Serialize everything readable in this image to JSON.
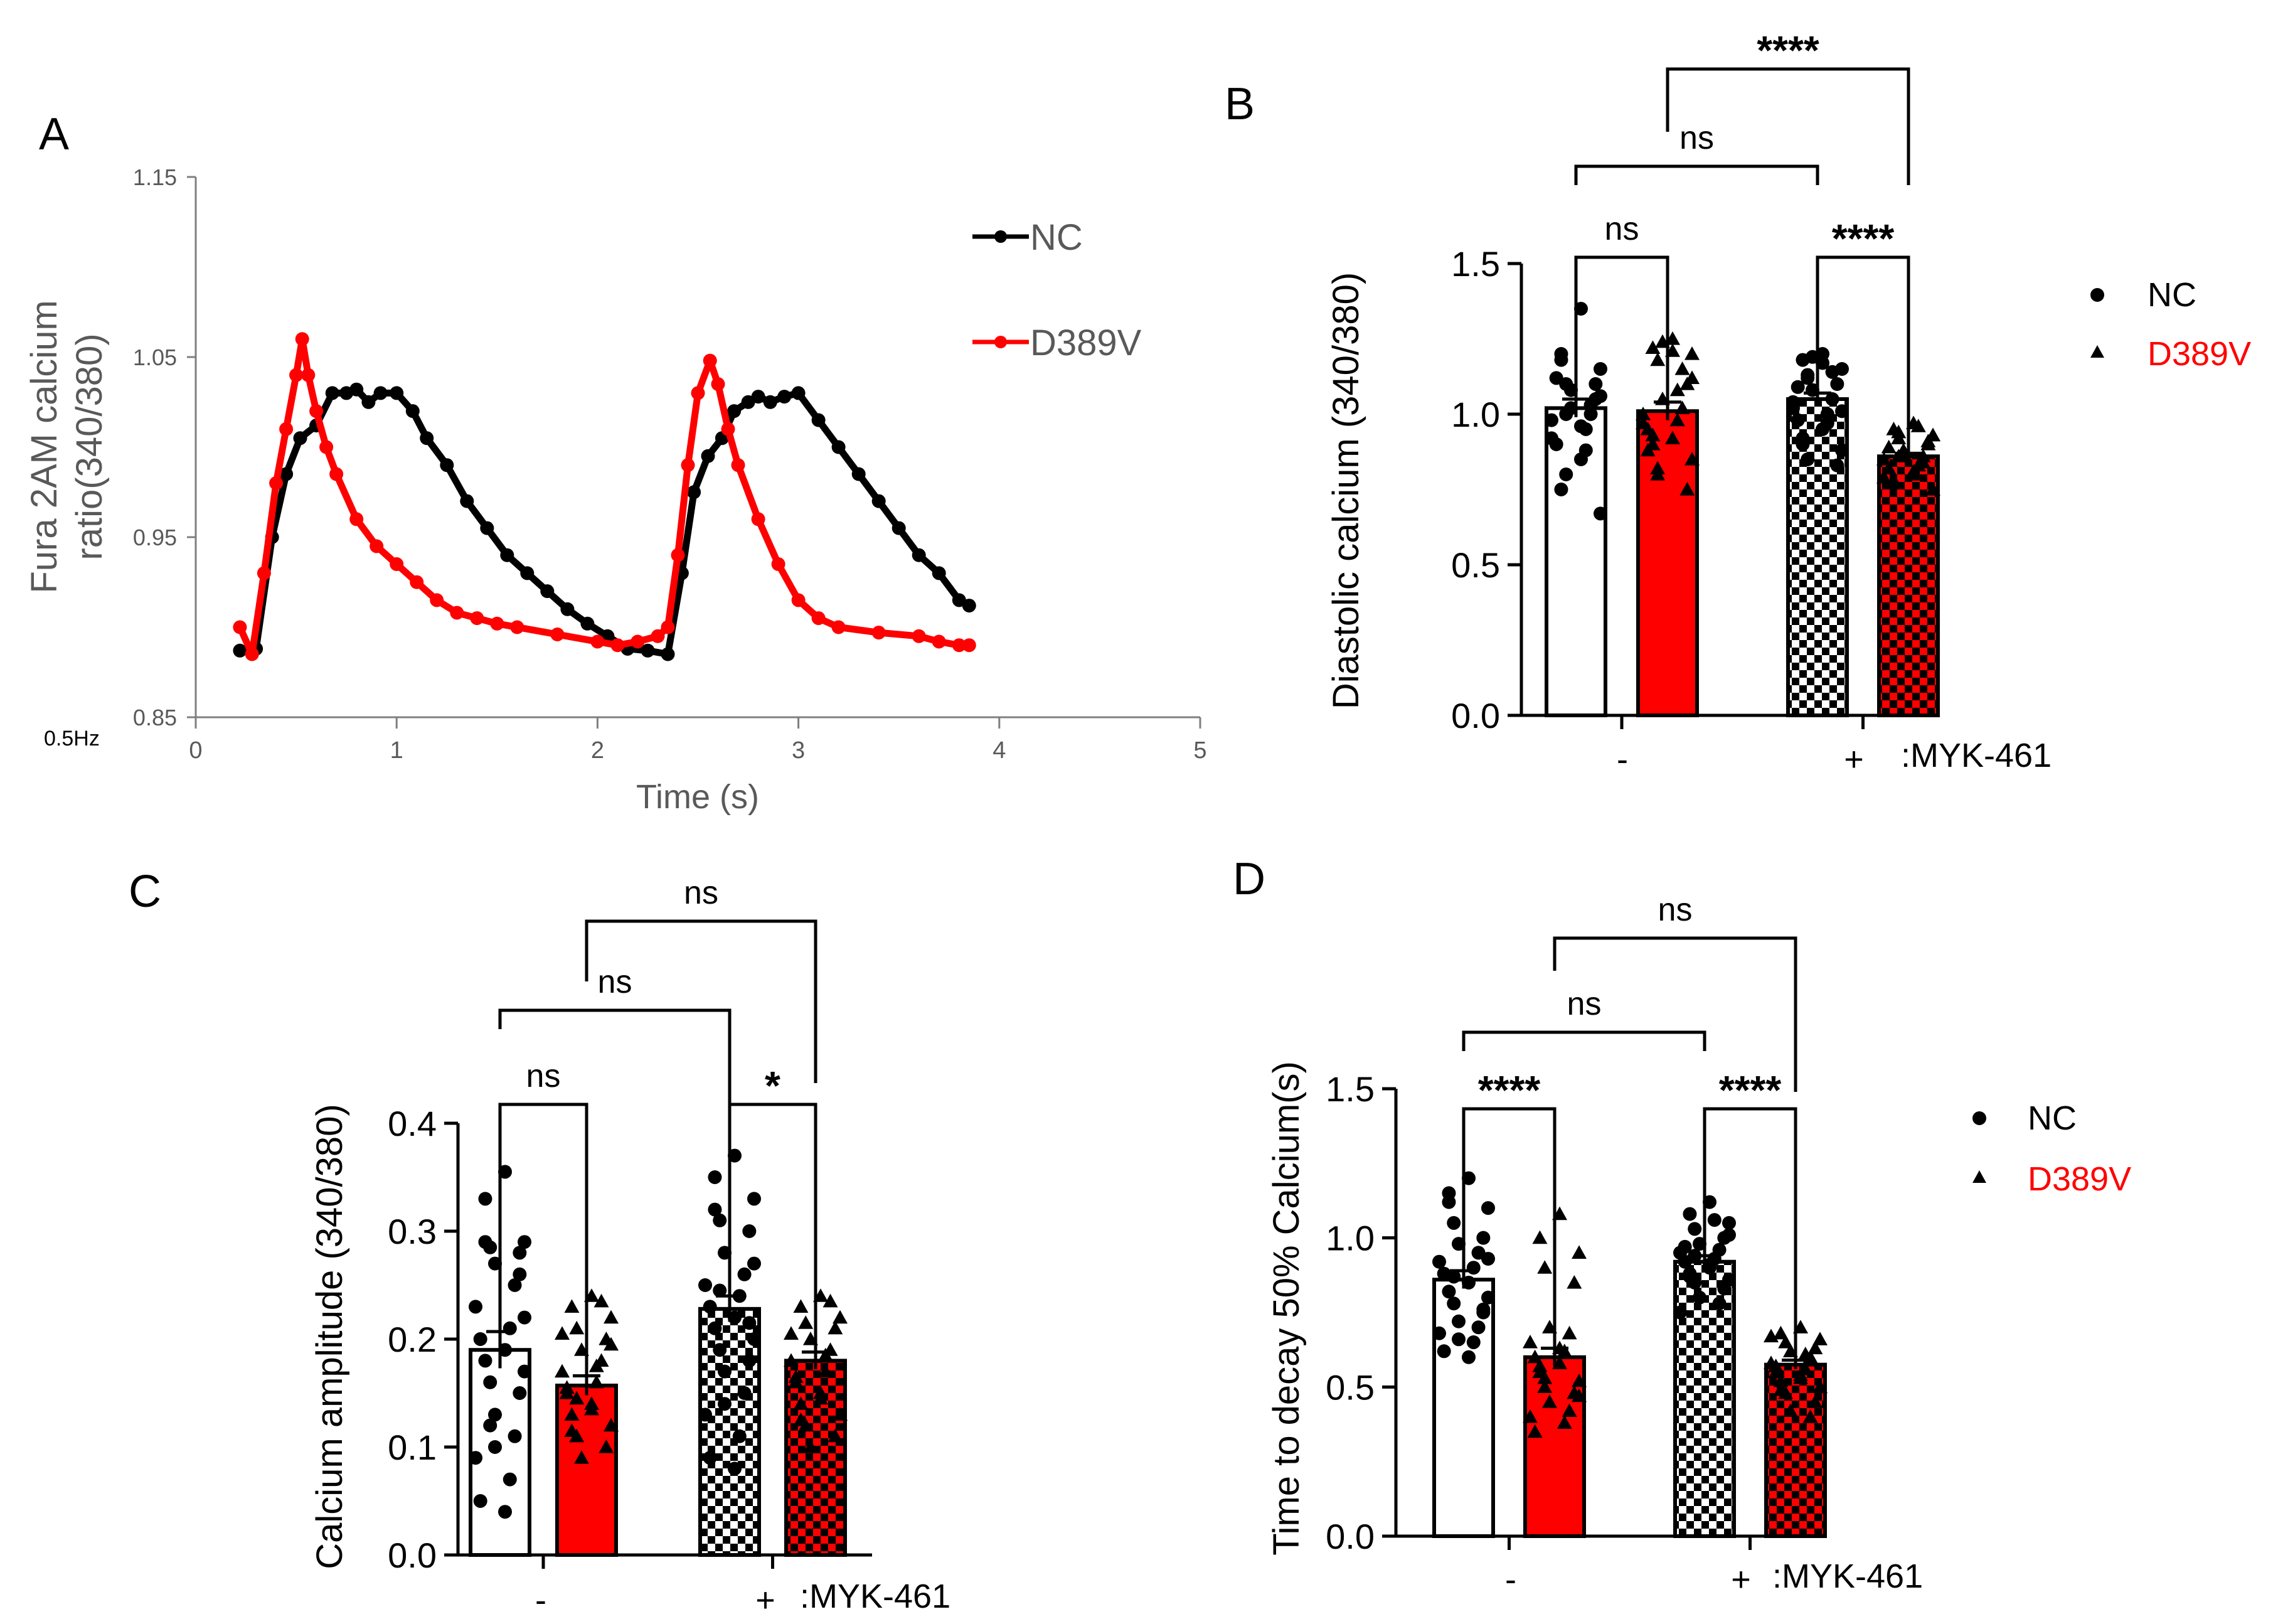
{
  "figure": {
    "colors": {
      "nc": "#000000",
      "d389v": "#ff0000",
      "axis_gray": "#7f7f7f",
      "text_gray": "#595959"
    }
  },
  "chart_data": [
    {
      "panel": "A",
      "type": "line",
      "ylabel_lines": [
        "Fura 2AM calcium",
        "ratio(340/380)"
      ],
      "xlabel": "Time (s)",
      "xlim": [
        0,
        5
      ],
      "ylim": [
        0.85,
        1.15
      ],
      "xticks": [
        "0",
        "1",
        "2",
        "3",
        "4",
        "5"
      ],
      "yticks": [
        "0.85",
        "0.95",
        "1.05",
        "1.15"
      ],
      "side_note": "0.5Hz",
      "legend": [
        "NC",
        "D389V"
      ],
      "legend_position": "top-right",
      "series": [
        {
          "name": "NC",
          "x": [
            0.22,
            0.3,
            0.38,
            0.45,
            0.52,
            0.6,
            0.68,
            0.75,
            0.8,
            0.86,
            0.92,
            1.0,
            1.08,
            1.15,
            1.25,
            1.35,
            1.45,
            1.55,
            1.65,
            1.75,
            1.85,
            1.95,
            2.05,
            2.15,
            2.25,
            2.35,
            2.42,
            2.48,
            2.55,
            2.62,
            2.68,
            2.75,
            2.8,
            2.86,
            2.93,
            3.0,
            3.1,
            3.2,
            3.3,
            3.4,
            3.5,
            3.6,
            3.7,
            3.8,
            3.85
          ],
          "y": [
            0.887,
            0.888,
            0.95,
            0.985,
            1.005,
            1.012,
            1.03,
            1.03,
            1.032,
            1.025,
            1.03,
            1.03,
            1.02,
            1.005,
            0.99,
            0.97,
            0.955,
            0.94,
            0.93,
            0.92,
            0.91,
            0.902,
            0.895,
            0.888,
            0.887,
            0.885,
            0.93,
            0.975,
            0.995,
            1.005,
            1.02,
            1.025,
            1.028,
            1.025,
            1.028,
            1.03,
            1.015,
            1.0,
            0.985,
            0.97,
            0.955,
            0.94,
            0.93,
            0.915,
            0.912
          ]
        },
        {
          "name": "D389V",
          "x": [
            0.22,
            0.28,
            0.34,
            0.4,
            0.45,
            0.5,
            0.53,
            0.56,
            0.6,
            0.65,
            0.7,
            0.8,
            0.9,
            1.0,
            1.1,
            1.2,
            1.3,
            1.4,
            1.5,
            1.6,
            1.8,
            2.0,
            2.1,
            2.2,
            2.3,
            2.35,
            2.4,
            2.45,
            2.5,
            2.56,
            2.6,
            2.65,
            2.7,
            2.8,
            2.9,
            3.0,
            3.1,
            3.2,
            3.4,
            3.6,
            3.7,
            3.8,
            3.85
          ],
          "y": [
            0.9,
            0.885,
            0.93,
            0.98,
            1.01,
            1.04,
            1.06,
            1.04,
            1.02,
            1.0,
            0.985,
            0.96,
            0.945,
            0.935,
            0.925,
            0.915,
            0.908,
            0.905,
            0.902,
            0.9,
            0.896,
            0.892,
            0.89,
            0.892,
            0.895,
            0.9,
            0.94,
            0.99,
            1.03,
            1.048,
            1.035,
            1.01,
            0.99,
            0.96,
            0.935,
            0.915,
            0.905,
            0.9,
            0.897,
            0.895,
            0.892,
            0.89,
            0.89
          ]
        }
      ]
    },
    {
      "panel": "B",
      "type": "bar",
      "ylabel": "Diastolic calcium (340/380)",
      "ylim": [
        0,
        1.5
      ],
      "yticks": [
        "0.0",
        "0.5",
        "1.0",
        "1.5"
      ],
      "group_labels": [
        "-",
        "+"
      ],
      "treatment_label": ":MYK-461",
      "legend": [
        "NC",
        "D389V"
      ],
      "legend_position": "top-right",
      "bars": [
        {
          "name": "NC",
          "treatment": "-",
          "mean": 1.02,
          "sem": 0.03,
          "points": [
            1.35,
            1.2,
            1.15,
            1.1,
            1.05,
            1.02,
            1.0,
            0.98,
            0.95,
            0.9,
            0.85,
            0.75,
            0.67,
            1.0,
            1.1,
            1.08,
            1.03,
            0.92,
            0.88,
            1.12,
            0.96,
            1.18,
            1.06,
            0.8
          ]
        },
        {
          "name": "D389V",
          "treatment": "-",
          "mean": 1.01,
          "sem": 0.03,
          "points": [
            1.25,
            1.22,
            1.2,
            1.18,
            1.1,
            1.05,
            1.02,
            1.0,
            0.98,
            0.95,
            0.92,
            0.9,
            0.85,
            0.8,
            0.75,
            1.24,
            1.15,
            0.97,
            1.08,
            0.88,
            1.21,
            0.93,
            1.12,
            0.82
          ]
        },
        {
          "name": "NC",
          "treatment": "+",
          "mean": 1.05,
          "sem": 0.02,
          "points": [
            1.2,
            1.18,
            1.15,
            1.12,
            1.1,
            1.08,
            1.05,
            1.02,
            1.0,
            0.98,
            0.95,
            0.92,
            0.88,
            0.85,
            0.83,
            1.19,
            1.14,
            1.04,
            0.97,
            1.09,
            1.17,
            0.9,
            1.01,
            1.13
          ]
        },
        {
          "name": "D389V",
          "treatment": "+",
          "mean": 0.86,
          "sem": 0.01,
          "points": [
            0.97,
            0.95,
            0.93,
            0.92,
            0.9,
            0.88,
            0.86,
            0.85,
            0.83,
            0.82,
            0.8,
            0.78,
            0.75,
            0.94,
            0.91,
            0.87,
            0.84,
            0.79,
            0.96,
            0.89,
            0.81,
            0.77,
            0.93,
            0.86
          ]
        }
      ],
      "comparisons": [
        {
          "from": 0,
          "to": 1,
          "label": "ns"
        },
        {
          "from": 2,
          "to": 3,
          "label": "****"
        },
        {
          "from": 0,
          "to": 2,
          "label": "ns"
        },
        {
          "from": 1,
          "to": 3,
          "label": "****"
        }
      ]
    },
    {
      "panel": "C",
      "type": "bar",
      "ylabel": "Calcium amplitude (340/380)",
      "ylim": [
        0,
        0.4
      ],
      "yticks": [
        "0.0",
        "0.1",
        "0.2",
        "0.3",
        "0.4"
      ],
      "group_labels": [
        "-",
        "+"
      ],
      "treatment_label": ":MYK-461",
      "bars": [
        {
          "name": "NC",
          "treatment": "-",
          "mean": 0.19,
          "sem": 0.017,
          "points": [
            0.355,
            0.33,
            0.29,
            0.285,
            0.28,
            0.27,
            0.25,
            0.23,
            0.21,
            0.2,
            0.19,
            0.18,
            0.17,
            0.16,
            0.15,
            0.13,
            0.11,
            0.09,
            0.07,
            0.05,
            0.04,
            0.29,
            0.22,
            0.12,
            0.26,
            0.1
          ]
        },
        {
          "name": "D389V",
          "treatment": "-",
          "mean": 0.157,
          "sem": 0.009,
          "points": [
            0.24,
            0.23,
            0.22,
            0.21,
            0.2,
            0.19,
            0.18,
            0.17,
            0.16,
            0.15,
            0.14,
            0.13,
            0.12,
            0.11,
            0.1,
            0.09,
            0.235,
            0.205,
            0.175,
            0.155,
            0.135,
            0.115,
            0.195,
            0.145
          ]
        },
        {
          "name": "NC",
          "treatment": "+",
          "mean": 0.228,
          "sem": 0.012,
          "points": [
            0.37,
            0.35,
            0.33,
            0.31,
            0.3,
            0.28,
            0.26,
            0.25,
            0.24,
            0.23,
            0.22,
            0.21,
            0.2,
            0.19,
            0.18,
            0.17,
            0.15,
            0.13,
            0.11,
            0.09,
            0.08,
            0.32,
            0.27,
            0.245,
            0.215,
            0.14
          ]
        },
        {
          "name": "D389V",
          "treatment": "+",
          "mean": 0.18,
          "sem": 0.008,
          "points": [
            0.24,
            0.23,
            0.22,
            0.215,
            0.21,
            0.2,
            0.19,
            0.18,
            0.17,
            0.16,
            0.15,
            0.14,
            0.13,
            0.12,
            0.11,
            0.1,
            0.235,
            0.205,
            0.185,
            0.165,
            0.145,
            0.125
          ]
        }
      ],
      "comparisons": [
        {
          "from": 0,
          "to": 1,
          "label": "ns"
        },
        {
          "from": 2,
          "to": 3,
          "label": "*"
        },
        {
          "from": 0,
          "to": 2,
          "label": "ns"
        },
        {
          "from": 1,
          "to": 3,
          "label": "ns"
        }
      ]
    },
    {
      "panel": "D",
      "type": "bar",
      "ylabel": "Time to decay 50% Calcium(s)",
      "ylim": [
        0,
        1.5
      ],
      "yticks": [
        "0.0",
        "0.5",
        "1.0",
        "1.5"
      ],
      "group_labels": [
        "-",
        "+"
      ],
      "treatment_label": ":MYK-461",
      "legend": [
        "NC",
        "D389V"
      ],
      "legend_position": "top-right",
      "bars": [
        {
          "name": "NC",
          "treatment": "-",
          "mean": 0.86,
          "sem": 0.03,
          "points": [
            1.2,
            1.15,
            1.1,
            1.05,
            1.0,
            0.98,
            0.95,
            0.92,
            0.9,
            0.88,
            0.85,
            0.82,
            0.8,
            0.78,
            0.75,
            0.72,
            0.7,
            0.68,
            0.65,
            0.62,
            0.6,
            1.12,
            0.93,
            0.87,
            0.76,
            0.66
          ]
        },
        {
          "name": "D389V",
          "treatment": "-",
          "mean": 0.6,
          "sem": 0.03,
          "points": [
            1.08,
            1.0,
            0.95,
            0.9,
            0.85,
            0.7,
            0.68,
            0.65,
            0.62,
            0.6,
            0.58,
            0.55,
            0.52,
            0.5,
            0.48,
            0.45,
            0.42,
            0.4,
            0.38,
            0.35,
            0.63,
            0.57,
            0.47,
            0.53
          ]
        },
        {
          "name": "NC",
          "treatment": "+",
          "mean": 0.92,
          "sem": 0.02,
          "points": [
            1.12,
            1.08,
            1.05,
            1.03,
            1.0,
            0.98,
            0.96,
            0.95,
            0.93,
            0.92,
            0.9,
            0.88,
            0.86,
            0.85,
            0.83,
            0.8,
            0.78,
            0.75,
            1.06,
            0.97,
            0.91,
            0.87,
            1.01,
            0.94
          ]
        },
        {
          "name": "D389V",
          "treatment": "+",
          "mean": 0.575,
          "sem": 0.015,
          "points": [
            0.7,
            0.68,
            0.66,
            0.65,
            0.63,
            0.62,
            0.6,
            0.58,
            0.56,
            0.55,
            0.53,
            0.52,
            0.5,
            0.48,
            0.45,
            0.42,
            0.4,
            0.67,
            0.61,
            0.57,
            0.54,
            0.49
          ]
        }
      ],
      "comparisons": [
        {
          "from": 0,
          "to": 1,
          "label": "****"
        },
        {
          "from": 2,
          "to": 3,
          "label": "****"
        },
        {
          "from": 0,
          "to": 2,
          "label": "ns"
        },
        {
          "from": 1,
          "to": 3,
          "label": "ns"
        }
      ]
    }
  ]
}
